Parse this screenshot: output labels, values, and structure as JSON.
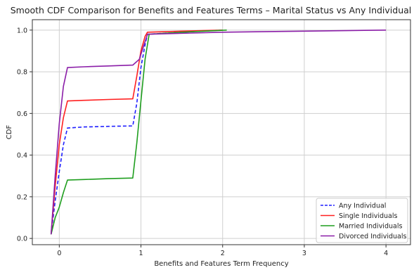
{
  "chart_data": {
    "type": "line",
    "title": "Smooth CDF Comparison for Benefits and Features Terms – Marital Status vs Any Individual",
    "xlabel": "Benefits and Features Term Frequency",
    "ylabel": "CDF",
    "xlim": [
      -0.33,
      4.3
    ],
    "ylim": [
      -0.03,
      1.05
    ],
    "xticks": [
      0,
      1,
      2,
      3,
      4
    ],
    "yticks": [
      0.0,
      0.2,
      0.4,
      0.6,
      0.8,
      1.0
    ],
    "grid": true,
    "legend_position": "lower-right",
    "series": [
      {
        "name": "Any Individual",
        "color": "#1f1fff",
        "dash": "dashed",
        "points": [
          [
            -0.1,
            0.02
          ],
          [
            -0.05,
            0.18
          ],
          [
            0.0,
            0.32
          ],
          [
            0.05,
            0.45
          ],
          [
            0.1,
            0.53
          ],
          [
            0.3,
            0.535
          ],
          [
            0.6,
            0.538
          ],
          [
            0.9,
            0.54
          ],
          [
            0.95,
            0.65
          ],
          [
            1.0,
            0.82
          ],
          [
            1.05,
            0.93
          ],
          [
            1.08,
            0.98
          ],
          [
            1.5,
            0.99
          ],
          [
            2.0,
            1.0
          ]
        ]
      },
      {
        "name": "Single Individuals",
        "color": "#ff2020",
        "dash": "solid",
        "points": [
          [
            -0.1,
            0.02
          ],
          [
            -0.05,
            0.25
          ],
          [
            0.0,
            0.45
          ],
          [
            0.05,
            0.58
          ],
          [
            0.1,
            0.66
          ],
          [
            0.3,
            0.663
          ],
          [
            0.6,
            0.667
          ],
          [
            0.9,
            0.67
          ],
          [
            0.95,
            0.78
          ],
          [
            1.0,
            0.9
          ],
          [
            1.05,
            0.97
          ],
          [
            1.08,
            0.99
          ],
          [
            1.5,
            0.995
          ],
          [
            2.0,
            1.0
          ]
        ]
      },
      {
        "name": "Married Individuals",
        "color": "#1e9e1e",
        "dash": "solid",
        "points": [
          [
            -0.1,
            0.02
          ],
          [
            -0.05,
            0.1
          ],
          [
            0.0,
            0.15
          ],
          [
            0.05,
            0.22
          ],
          [
            0.1,
            0.28
          ],
          [
            0.3,
            0.283
          ],
          [
            0.6,
            0.287
          ],
          [
            0.9,
            0.29
          ],
          [
            0.95,
            0.46
          ],
          [
            1.0,
            0.66
          ],
          [
            1.05,
            0.86
          ],
          [
            1.1,
            0.98
          ],
          [
            1.5,
            0.99
          ],
          [
            2.05,
            1.0
          ]
        ]
      },
      {
        "name": "Divorced Individuals",
        "color": "#8b1ea8",
        "dash": "solid",
        "points": [
          [
            -0.1,
            0.02
          ],
          [
            -0.05,
            0.3
          ],
          [
            0.0,
            0.55
          ],
          [
            0.05,
            0.73
          ],
          [
            0.1,
            0.82
          ],
          [
            0.3,
            0.824
          ],
          [
            0.6,
            0.828
          ],
          [
            0.9,
            0.832
          ],
          [
            0.98,
            0.86
          ],
          [
            1.03,
            0.92
          ],
          [
            1.08,
            0.98
          ],
          [
            2.0,
            0.99
          ],
          [
            3.0,
            0.995
          ],
          [
            4.0,
            1.0
          ]
        ]
      }
    ]
  }
}
